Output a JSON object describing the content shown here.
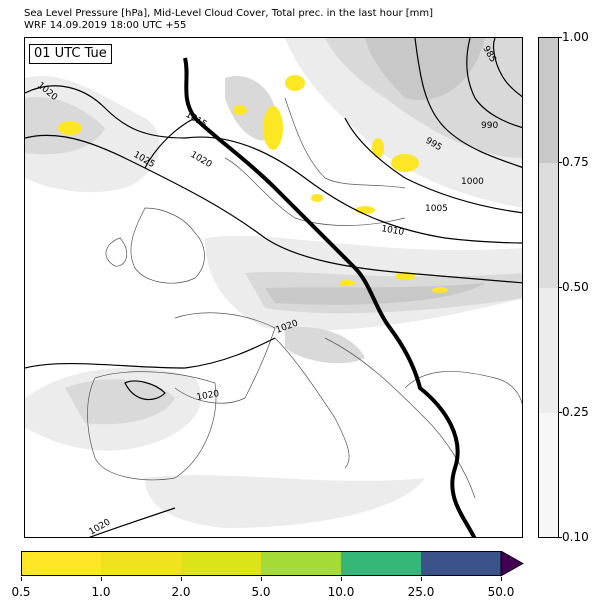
{
  "header": {
    "title_line1": "Sea Level Pressure [hPa], Mid-Level Cloud Cover, Total prec. in the last hour [mm]",
    "title_line2": "WRF 14.09.2019 18:00 UTC +55"
  },
  "map": {
    "time_label": "01 UTC Tue",
    "isobar_labels": [
      "1020",
      "1015",
      "1020",
      "1025",
      "985",
      "990",
      "995",
      "1000",
      "1005",
      "1010",
      "1020",
      "1020",
      "1020"
    ],
    "colors": {
      "cloud_light": "#ececec",
      "cloud_mid": "#d9d9d9",
      "cloud_dark": "#c8c8c8",
      "precip": "#fde725",
      "coast": "#555555",
      "isobar": "#000000"
    }
  },
  "colorbar_right": {
    "ticks": [
      "1.00",
      "0.75",
      "0.50",
      "0.25",
      "0.10"
    ],
    "colors": [
      "#c8c8c8",
      "#dcdcdc",
      "#ececec",
      "#f7f7f7"
    ]
  },
  "colorbar_bottom": {
    "ticks": [
      "0.5",
      "1.0",
      "2.0",
      "5.0",
      "10.0",
      "25.0",
      "50.0"
    ],
    "colors": [
      "#fde725",
      "#f0e31e",
      "#dce318",
      "#a5db36",
      "#35b779",
      "#3b528b",
      "#440154"
    ]
  }
}
